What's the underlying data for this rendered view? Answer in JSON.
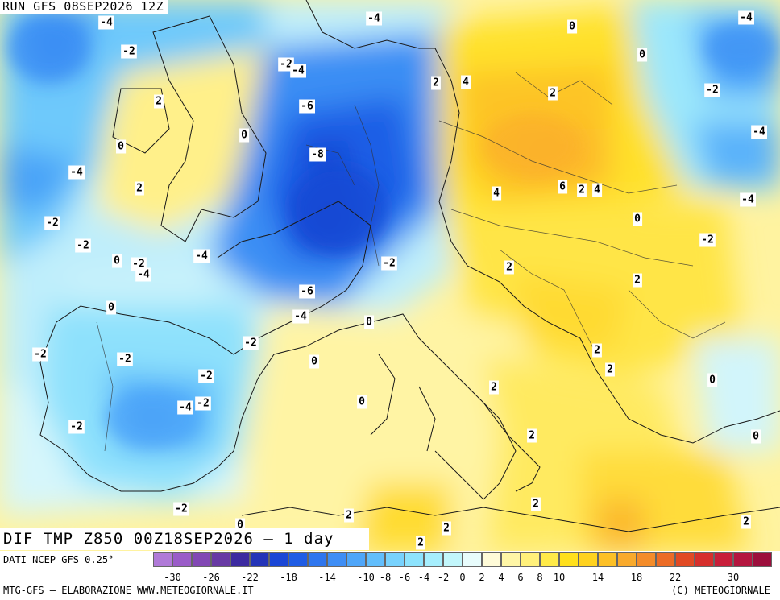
{
  "header": {
    "run_label": "RUN GFS 08SEP2026 12Z"
  },
  "title": {
    "text": "DIF TMP Z850 00Z18SEP2026 — 1 day"
  },
  "footer": {
    "source": "DATI NCEP GFS 0.25°",
    "credit_left": "MTG-GFS — ELABORAZIONE WWW.METEOGIORNALE.IT",
    "credit_right": "(C) METEOGIORNALE"
  },
  "colors": {
    "scale": [
      "#b07ad8",
      "#9a5cc8",
      "#8248b4",
      "#683aa4",
      "#3c2aa0",
      "#2434b8",
      "#1a46d6",
      "#1f5ce4",
      "#2f76ee",
      "#3f8ef5",
      "#4fa6f9",
      "#62befc",
      "#78d2fd",
      "#8de3fd",
      "#a6eefd",
      "#c2f6fb",
      "#e8fcfc",
      "#fffbd8",
      "#fff6a6",
      "#fff07a",
      "#ffea48",
      "#ffe01c",
      "#ffd21e",
      "#fdc026",
      "#f9aa2c",
      "#f48c2a",
      "#ec6c26",
      "#e14a24",
      "#d62f2c",
      "#c81e3a",
      "#b4163f",
      "#9c0f3c"
    ]
  },
  "scale_ticks": [
    "-30",
    "-26",
    "-22",
    "-18",
    "-14",
    "-10",
    "-8",
    "-6",
    "-4",
    "-2",
    "0",
    "2",
    "4",
    "6",
    "8",
    "10",
    "14",
    "18",
    "22",
    "30"
  ],
  "isolines": [
    {
      "label": "-4"
    },
    {
      "label": "-2"
    },
    {
      "label": "-2"
    },
    {
      "label": "-4"
    },
    {
      "label": "2"
    },
    {
      "label": "0"
    },
    {
      "label": "-6"
    },
    {
      "label": "0"
    },
    {
      "label": "-8"
    },
    {
      "label": "-4"
    },
    {
      "label": "2"
    },
    {
      "label": "-2"
    },
    {
      "label": "-2"
    },
    {
      "label": "0"
    },
    {
      "label": "-2"
    },
    {
      "label": "-4"
    },
    {
      "label": "-4"
    },
    {
      "label": "-6"
    },
    {
      "label": "-4"
    },
    {
      "label": "0"
    },
    {
      "label": "-2"
    },
    {
      "label": "0"
    },
    {
      "label": "0"
    },
    {
      "label": "-2"
    },
    {
      "label": "-2"
    },
    {
      "label": "-2"
    },
    {
      "label": "-2"
    },
    {
      "label": "0"
    },
    {
      "label": "-4"
    },
    {
      "label": "-2"
    },
    {
      "label": "-2"
    },
    {
      "label": "0"
    },
    {
      "label": "-4"
    },
    {
      "label": "0"
    },
    {
      "label": "0"
    },
    {
      "label": "2"
    },
    {
      "label": "4"
    },
    {
      "label": "2"
    },
    {
      "label": "0"
    },
    {
      "label": "-2"
    },
    {
      "label": "-4"
    },
    {
      "label": "-4"
    },
    {
      "label": "4"
    },
    {
      "label": "6"
    },
    {
      "label": "2"
    },
    {
      "label": "4"
    },
    {
      "label": "-4"
    },
    {
      "label": "0"
    },
    {
      "label": "-2"
    },
    {
      "label": "2"
    },
    {
      "label": "2"
    },
    {
      "label": "2"
    },
    {
      "label": "2"
    },
    {
      "label": "2"
    },
    {
      "label": "0"
    },
    {
      "label": "2"
    },
    {
      "label": "0"
    },
    {
      "label": "2"
    },
    {
      "label": "2"
    },
    {
      "label": "2"
    },
    {
      "label": "2"
    },
    {
      "label": "2"
    },
    {
      "label": "-2"
    }
  ]
}
